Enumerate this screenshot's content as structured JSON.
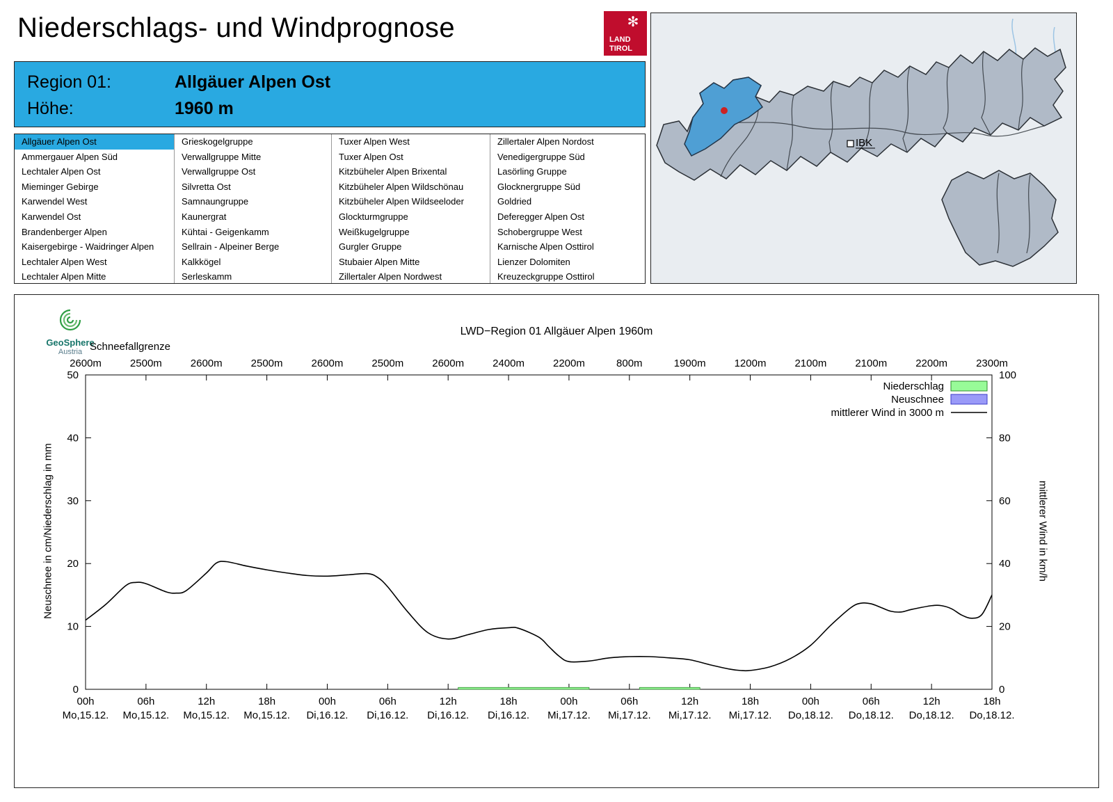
{
  "colors": {
    "accent": "#29a9e1",
    "logo_red": "#c00d2d",
    "map_bg": "#e9edf1",
    "map_region": "#b0bac7",
    "map_highlight": "#4f9fd4",
    "marker_red": "#cc2222"
  },
  "header": {
    "title": "Niederschlags- und Windprognose"
  },
  "logo": {
    "line1": "LAND",
    "line2": "TIROL"
  },
  "region_info": {
    "region_label": "Region 01:",
    "region_value": "Allgäuer Alpen Ost",
    "altitude_label": "Höhe:",
    "altitude_value": "1960 m"
  },
  "region_list": {
    "selected": "Allgäuer Alpen Ost",
    "columns": [
      [
        "Allgäuer Alpen Ost",
        "Ammergauer Alpen Süd",
        "Lechtaler Alpen Ost",
        "Mieminger Gebirge",
        "Karwendel West",
        "Karwendel Ost",
        "Brandenberger Alpen",
        "Kaisergebirge - Waidringer Alpen",
        "Lechtaler Alpen West",
        "Lechtaler Alpen Mitte"
      ],
      [
        "Grieskogelgruppe",
        "Verwallgruppe Mitte",
        "Verwallgruppe Ost",
        "Silvretta Ost",
        "Samnaungruppe",
        "Kaunergrat",
        "Kühtai - Geigenkamm",
        "Sellrain - Alpeiner Berge",
        "Kalkkögel",
        "Serleskamm"
      ],
      [
        "Tuxer Alpen West",
        "Tuxer Alpen Ost",
        "Kitzbüheler Alpen Brixental",
        "Kitzbüheler Alpen Wildschönau",
        "Kitzbüheler Alpen Wildseeloder",
        "Glockturmgruppe",
        "Weißkugelgruppe",
        "Gurgler Gruppe",
        "Stubaier Alpen Mitte",
        "Zillertaler Alpen Nordwest"
      ],
      [
        "Zillertaler Alpen Nordost",
        "Venedigergruppe Süd",
        "Lasörling Gruppe",
        "Glocknergruppe Süd",
        "Goldried",
        "Deferegger Alpen Ost",
        "Schobergruppe West",
        "Karnische Alpen Osttirol",
        "Lienzer Dolomiten",
        "Kreuzeckgruppe Osttirol"
      ]
    ]
  },
  "map": {
    "city_label": "IBK"
  },
  "geosphere": {
    "name": "GeoSphere",
    "country": "Austria"
  },
  "chart": {
    "title": "LWD−Region 01 Allgäuer Alpen 1960m",
    "snowline_label": "Schneefallgrenze",
    "y_left_label": "Neuschnee in cm/Niederschlag in mm",
    "y_right_label": "mittlerer Wind in km/h"
  },
  "chart_data": {
    "type": "line",
    "title": "LWD−Region 01 Allgäuer Alpen 1960m",
    "x_hours_range": [
      0,
      90
    ],
    "x_ticks": [
      {
        "hour": 0,
        "time": "00h",
        "date": "Mo,15.12."
      },
      {
        "hour": 6,
        "time": "06h",
        "date": "Mo,15.12."
      },
      {
        "hour": 12,
        "time": "12h",
        "date": "Mo,15.12."
      },
      {
        "hour": 18,
        "time": "18h",
        "date": "Mo,15.12."
      },
      {
        "hour": 24,
        "time": "00h",
        "date": "Di,16.12."
      },
      {
        "hour": 30,
        "time": "06h",
        "date": "Di,16.12."
      },
      {
        "hour": 36,
        "time": "12h",
        "date": "Di,16.12."
      },
      {
        "hour": 42,
        "time": "18h",
        "date": "Di,16.12."
      },
      {
        "hour": 48,
        "time": "00h",
        "date": "Mi,17.12."
      },
      {
        "hour": 54,
        "time": "06h",
        "date": "Mi,17.12."
      },
      {
        "hour": 60,
        "time": "12h",
        "date": "Mi,17.12."
      },
      {
        "hour": 66,
        "time": "18h",
        "date": "Mi,17.12."
      },
      {
        "hour": 72,
        "time": "00h",
        "date": "Do,18.12."
      },
      {
        "hour": 78,
        "time": "06h",
        "date": "Do,18.12."
      },
      {
        "hour": 84,
        "time": "12h",
        "date": "Do,18.12."
      },
      {
        "hour": 90,
        "time": "18h",
        "date": "Do,18.12."
      }
    ],
    "snowline_m": [
      "2600m",
      "2500m",
      "2600m",
      "2500m",
      "2600m",
      "2500m",
      "2600m",
      "2400m",
      "2200m",
      "800m",
      "1900m",
      "1200m",
      "2100m",
      "2100m",
      "2200m",
      "2300m"
    ],
    "left_axis": {
      "label": "Neuschnee in cm/Niederschlag in mm",
      "min": 0,
      "max": 50,
      "ticks": [
        0,
        10,
        20,
        30,
        40,
        50
      ]
    },
    "right_axis": {
      "label": "mittlerer Wind in km/h",
      "min": 0,
      "max": 100,
      "ticks": [
        0,
        20,
        40,
        60,
        80,
        100
      ]
    },
    "legend": [
      {
        "label": "Niederschlag",
        "type": "box",
        "fill": "#98fb98",
        "edge": "#2e8b2e"
      },
      {
        "label": "Neuschnee",
        "type": "box",
        "fill": "#9a9af8",
        "edge": "#3c3cc8"
      },
      {
        "label": "mittlerer Wind in 3000 m",
        "type": "line",
        "stroke": "#000000"
      }
    ],
    "series": [
      {
        "name": "mittlerer Wind in 3000 m",
        "axis": "right",
        "unit": "km/h",
        "points": [
          [
            0,
            22
          ],
          [
            2,
            27
          ],
          [
            4,
            33
          ],
          [
            5,
            34
          ],
          [
            6,
            33.6
          ],
          [
            8,
            31
          ],
          [
            9,
            30.6
          ],
          [
            10,
            31.4
          ],
          [
            12,
            37
          ],
          [
            13,
            40.2
          ],
          [
            14,
            40.6
          ],
          [
            16,
            39.2
          ],
          [
            18,
            38
          ],
          [
            20,
            37
          ],
          [
            22,
            36.2
          ],
          [
            24,
            36
          ],
          [
            26,
            36.4
          ],
          [
            28,
            36.8
          ],
          [
            29,
            35.6
          ],
          [
            30,
            32.6
          ],
          [
            32,
            24.6
          ],
          [
            34,
            18
          ],
          [
            36,
            16
          ],
          [
            38,
            17.4
          ],
          [
            40,
            19
          ],
          [
            42,
            19.6
          ],
          [
            43,
            19.4
          ],
          [
            45,
            16.6
          ],
          [
            46,
            13.6
          ],
          [
            47,
            10.6
          ],
          [
            48,
            8.8
          ],
          [
            50,
            9
          ],
          [
            52,
            10
          ],
          [
            54,
            10.4
          ],
          [
            56,
            10.4
          ],
          [
            58,
            10
          ],
          [
            60,
            9.4
          ],
          [
            62,
            7.8
          ],
          [
            64,
            6.4
          ],
          [
            65,
            6
          ],
          [
            66,
            6
          ],
          [
            68,
            7.2
          ],
          [
            70,
            9.8
          ],
          [
            72,
            14
          ],
          [
            74,
            20.4
          ],
          [
            76,
            26
          ],
          [
            77,
            27.4
          ],
          [
            78,
            27.2
          ],
          [
            79,
            26
          ],
          [
            80,
            24.8
          ],
          [
            81,
            24.6
          ],
          [
            82,
            25.4
          ],
          [
            84,
            26.6
          ],
          [
            85,
            26.6
          ],
          [
            86,
            25.6
          ],
          [
            87,
            23.6
          ],
          [
            88,
            22.6
          ],
          [
            89,
            23.8
          ],
          [
            90,
            30
          ]
        ]
      },
      {
        "name": "Niederschlag",
        "axis": "left",
        "unit": "mm",
        "segments": [
          {
            "from": 37,
            "to": 50,
            "mm": 0.3
          },
          {
            "from": 55,
            "to": 61,
            "mm": 0.3
          }
        ]
      },
      {
        "name": "Neuschnee",
        "axis": "left",
        "unit": "cm",
        "segments": []
      }
    ]
  }
}
